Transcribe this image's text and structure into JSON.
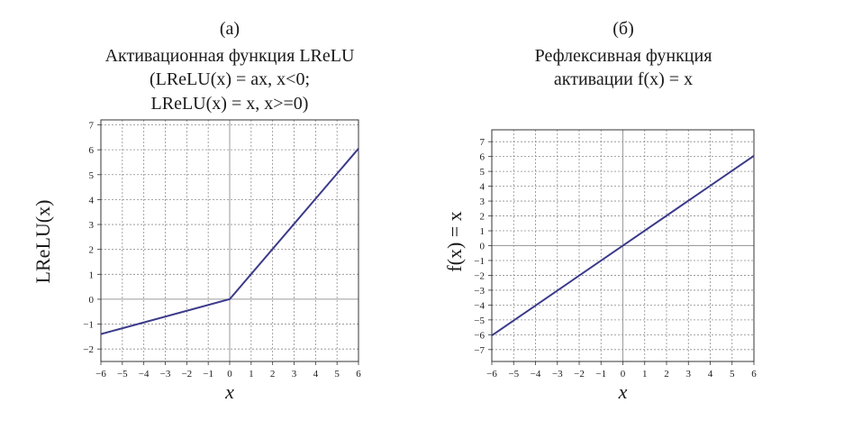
{
  "chart_data": [
    {
      "type": "line",
      "panel_label": "(a)",
      "title_lines": [
        "Активационная функция LReLU",
        "(LReLU(x) = ax, x<0;",
        "LReLU(x) = x, x>=0)"
      ],
      "xlabel": "x",
      "ylabel": "LReLU(x)",
      "xlim": [
        -6,
        6
      ],
      "ylim": [
        -2.5,
        7.2
      ],
      "xticks": [
        -6,
        -5,
        -4,
        -3,
        -2,
        -1,
        0,
        1,
        2,
        3,
        4,
        5,
        6
      ],
      "yticks": [
        -2,
        -1,
        0,
        1,
        2,
        3,
        4,
        5,
        6,
        7
      ],
      "grid": true,
      "series": [
        {
          "x": [
            -6,
            0,
            6
          ],
          "y": [
            -1.4,
            0,
            6.05
          ]
        }
      ]
    },
    {
      "type": "line",
      "panel_label": "(б)",
      "title_lines": [
        "Рефлексивная функция",
        "активации f(x) = x"
      ],
      "xlabel": "x",
      "ylabel": "f(x) = x",
      "xlim": [
        -6,
        6
      ],
      "ylim": [
        -7.8,
        7.8
      ],
      "xticks": [
        -6,
        -5,
        -4,
        -3,
        -2,
        -1,
        0,
        1,
        2,
        3,
        4,
        5,
        6
      ],
      "yticks": [
        -7,
        -6,
        -5,
        -4,
        -3,
        -2,
        -1,
        0,
        1,
        2,
        3,
        4,
        5,
        6,
        7
      ],
      "grid": true,
      "series": [
        {
          "x": [
            -6,
            6
          ],
          "y": [
            -6.05,
            6.05
          ]
        }
      ]
    }
  ]
}
